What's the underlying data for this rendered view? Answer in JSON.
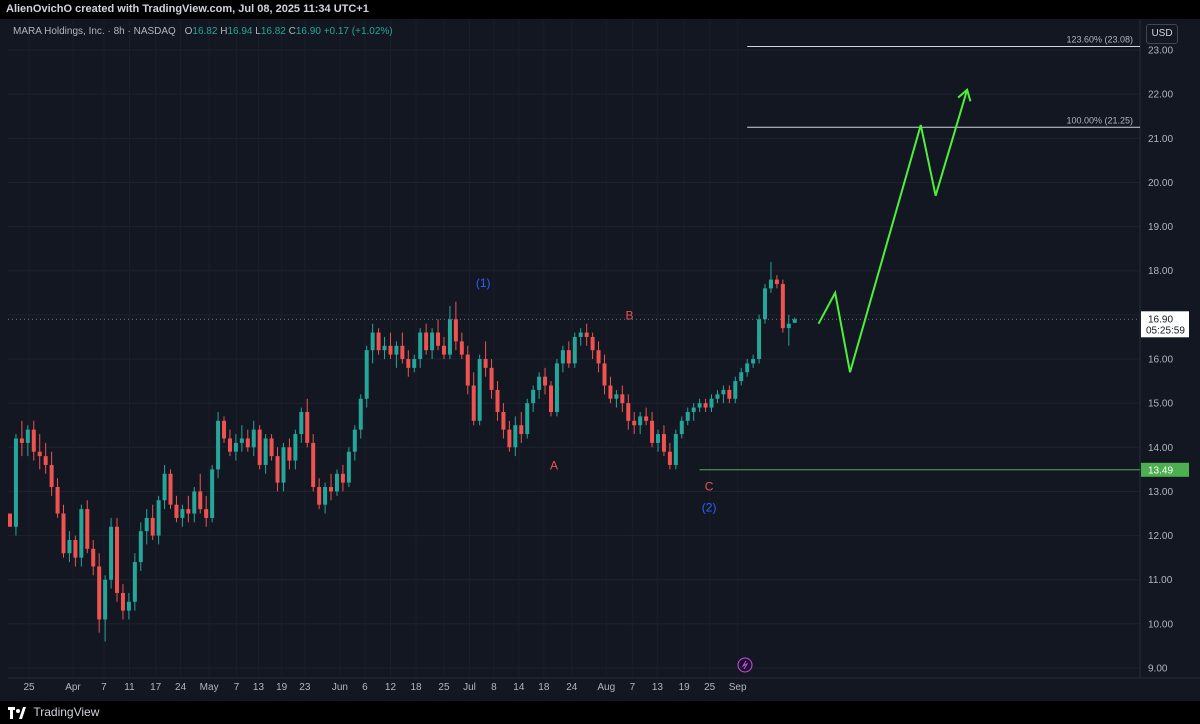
{
  "header": {
    "attribution": "AlienOvichO created with TradingView.com, Jul 08, 2025 11:34 UTC+1"
  },
  "legend": {
    "symbol": "MARA Holdings, Inc. · 8h · NASDAQ",
    "open_label": "O",
    "open": "16.82",
    "high_label": "H",
    "high": "16.94",
    "low_label": "L",
    "low": "16.82",
    "close_label": "C",
    "close": "16.90",
    "change": "+0.17 (+1.02%)"
  },
  "currency": "USD",
  "footer": {
    "brand": "TradingView"
  },
  "colors": {
    "up": "#26a69a",
    "down": "#ef5350",
    "projection": "#4cf03a",
    "wave_blue": "#2962ff",
    "wave_red": "#ef5350",
    "support": "#4caf50"
  },
  "chart_data": {
    "type": "candlestick",
    "yaxis": {
      "min": 9.0,
      "max": 23.0,
      "ticks": [
        9,
        10,
        11,
        12,
        13,
        14,
        15,
        16,
        17,
        18,
        19,
        20,
        21,
        22,
        23
      ],
      "tick_labels": [
        "9.00",
        "10.00",
        "11.00",
        "12.00",
        "13.00",
        "14.00",
        "15.00",
        "16.00",
        "17.00",
        "18.00",
        "19.00",
        "20.00",
        "21.00",
        "22.00",
        "23.00"
      ]
    },
    "xaxis": {
      "labels": [
        "25",
        "Apr",
        "7",
        "11",
        "17",
        "24",
        "May",
        "7",
        "13",
        "19",
        "23",
        "Jun",
        "6",
        "12",
        "18",
        "25",
        "Jul",
        "8",
        "14",
        "18",
        "24",
        "Aug",
        "7",
        "13",
        "19",
        "25",
        "Sep"
      ],
      "label_positions": [
        0,
        7.4,
        12.6,
        16.9,
        21.3,
        25.5,
        30.3,
        34.9,
        38.6,
        42.5,
        46.4,
        52.3,
        56.5,
        60.8,
        65.1,
        69.8,
        74.1,
        78.2,
        82.4,
        86.6,
        91.3,
        97.1,
        101.5,
        105.7,
        110.2,
        114.5,
        119.2
      ]
    },
    "candles": [
      [
        12.5,
        12.5,
        12.2,
        12.2
      ],
      [
        12.2,
        14.3,
        12.0,
        14.2
      ],
      [
        14.2,
        14.6,
        13.8,
        14.1
      ],
      [
        14.1,
        14.5,
        13.8,
        14.4
      ],
      [
        14.4,
        14.6,
        13.7,
        13.9
      ],
      [
        13.9,
        14.3,
        13.5,
        13.8
      ],
      [
        13.8,
        14.1,
        13.4,
        13.6
      ],
      [
        13.6,
        13.9,
        12.9,
        13.1
      ],
      [
        13.1,
        13.3,
        12.4,
        12.5
      ],
      [
        12.5,
        12.7,
        11.5,
        11.6
      ],
      [
        11.6,
        12.1,
        11.4,
        11.9
      ],
      [
        11.9,
        12.0,
        11.3,
        11.5
      ],
      [
        11.5,
        12.7,
        11.3,
        12.6
      ],
      [
        12.6,
        12.8,
        11.6,
        11.7
      ],
      [
        11.7,
        11.9,
        11.1,
        11.3
      ],
      [
        11.3,
        11.6,
        9.8,
        10.1
      ],
      [
        10.1,
        11.1,
        9.6,
        11.0
      ],
      [
        11.0,
        12.4,
        10.8,
        12.2
      ],
      [
        12.2,
        12.4,
        10.5,
        10.7
      ],
      [
        10.7,
        10.9,
        10.1,
        10.3
      ],
      [
        10.3,
        10.7,
        10.1,
        10.5
      ],
      [
        10.5,
        11.6,
        10.3,
        11.4
      ],
      [
        11.4,
        12.3,
        11.2,
        12.1
      ],
      [
        12.1,
        12.6,
        11.8,
        12.4
      ],
      [
        12.4,
        12.7,
        11.9,
        12.0
      ],
      [
        12.0,
        12.9,
        11.8,
        12.8
      ],
      [
        12.8,
        13.6,
        12.6,
        13.4
      ],
      [
        13.4,
        13.5,
        12.6,
        12.7
      ],
      [
        12.7,
        12.9,
        12.3,
        12.4
      ],
      [
        12.4,
        12.7,
        12.2,
        12.6
      ],
      [
        12.6,
        12.9,
        12.3,
        12.5
      ],
      [
        12.5,
        13.1,
        12.3,
        13.0
      ],
      [
        13.0,
        13.4,
        12.5,
        12.6
      ],
      [
        12.6,
        12.9,
        12.2,
        12.4
      ],
      [
        12.4,
        13.6,
        12.3,
        13.5
      ],
      [
        13.5,
        14.8,
        13.3,
        14.6
      ],
      [
        14.6,
        14.7,
        14.1,
        14.2
      ],
      [
        14.2,
        14.4,
        13.8,
        13.9
      ],
      [
        13.9,
        14.3,
        13.7,
        14.1
      ],
      [
        14.1,
        14.5,
        13.9,
        14.2
      ],
      [
        14.2,
        14.4,
        13.9,
        14.0
      ],
      [
        14.0,
        14.6,
        13.8,
        14.4
      ],
      [
        14.4,
        14.5,
        13.5,
        13.6
      ],
      [
        13.6,
        14.3,
        13.4,
        14.2
      ],
      [
        14.2,
        14.3,
        13.7,
        13.8
      ],
      [
        13.8,
        14.0,
        13.0,
        13.2
      ],
      [
        13.2,
        14.1,
        13.0,
        14.0
      ],
      [
        14.0,
        14.2,
        13.5,
        13.7
      ],
      [
        13.7,
        14.4,
        13.5,
        14.3
      ],
      [
        14.3,
        14.9,
        14.1,
        14.8
      ],
      [
        14.8,
        15.1,
        14.0,
        14.1
      ],
      [
        14.1,
        14.3,
        13.0,
        13.1
      ],
      [
        13.1,
        13.3,
        12.6,
        12.7
      ],
      [
        12.7,
        13.2,
        12.5,
        13.1
      ],
      [
        13.1,
        13.4,
        12.8,
        13.0
      ],
      [
        13.0,
        13.5,
        12.9,
        13.4
      ],
      [
        13.4,
        13.6,
        13.0,
        13.2
      ],
      [
        13.2,
        14.0,
        13.1,
        13.9
      ],
      [
        13.9,
        14.5,
        13.7,
        14.4
      ],
      [
        14.4,
        15.2,
        14.2,
        15.1
      ],
      [
        15.1,
        16.3,
        14.9,
        16.2
      ],
      [
        16.2,
        16.8,
        15.9,
        16.6
      ],
      [
        16.6,
        16.7,
        16.1,
        16.2
      ],
      [
        16.2,
        16.5,
        16.0,
        16.3
      ],
      [
        16.3,
        16.6,
        16.0,
        16.1
      ],
      [
        16.1,
        16.4,
        15.8,
        16.3
      ],
      [
        16.3,
        16.6,
        15.9,
        16.0
      ],
      [
        16.0,
        16.2,
        15.6,
        15.8
      ],
      [
        15.8,
        16.1,
        15.7,
        16.0
      ],
      [
        16.0,
        16.7,
        15.8,
        16.6
      ],
      [
        16.6,
        16.8,
        16.1,
        16.2
      ],
      [
        16.2,
        16.7,
        16.0,
        16.6
      ],
      [
        16.6,
        16.9,
        16.2,
        16.3
      ],
      [
        16.3,
        16.5,
        16.0,
        16.1
      ],
      [
        16.1,
        17.2,
        16.0,
        16.9
      ],
      [
        16.9,
        17.3,
        16.2,
        16.4
      ],
      [
        16.4,
        16.6,
        16.0,
        16.1
      ],
      [
        16.1,
        16.3,
        15.2,
        15.4
      ],
      [
        15.4,
        15.7,
        14.5,
        14.6
      ],
      [
        14.6,
        16.1,
        14.5,
        16.0
      ],
      [
        16.0,
        16.4,
        15.6,
        15.8
      ],
      [
        15.8,
        16.0,
        15.1,
        15.3
      ],
      [
        15.3,
        15.5,
        14.6,
        14.8
      ],
      [
        14.8,
        15.0,
        14.2,
        14.4
      ],
      [
        14.4,
        14.6,
        13.9,
        14.0
      ],
      [
        14.0,
        14.7,
        13.8,
        14.5
      ],
      [
        14.5,
        14.8,
        14.1,
        14.3
      ],
      [
        14.3,
        15.1,
        14.2,
        15.0
      ],
      [
        15.0,
        15.4,
        14.8,
        15.3
      ],
      [
        15.3,
        15.7,
        15.1,
        15.6
      ],
      [
        15.6,
        15.8,
        15.2,
        15.4
      ],
      [
        15.4,
        15.5,
        14.7,
        14.8
      ],
      [
        14.8,
        16.0,
        14.7,
        15.9
      ],
      [
        15.9,
        16.3,
        15.7,
        16.2
      ],
      [
        16.2,
        16.4,
        15.8,
        15.9
      ],
      [
        15.9,
        16.6,
        15.8,
        16.5
      ],
      [
        16.5,
        16.7,
        16.3,
        16.6
      ],
      [
        16.6,
        16.8,
        16.3,
        16.5
      ],
      [
        16.5,
        16.6,
        16.0,
        16.2
      ],
      [
        16.2,
        16.4,
        15.7,
        15.9
      ],
      [
        15.9,
        16.1,
        15.2,
        15.4
      ],
      [
        15.4,
        15.6,
        15.0,
        15.1
      ],
      [
        15.1,
        15.3,
        14.9,
        15.2
      ],
      [
        15.2,
        15.4,
        14.8,
        15.0
      ],
      [
        15.0,
        15.2,
        14.4,
        14.6
      ],
      [
        14.6,
        14.8,
        14.3,
        14.5
      ],
      [
        14.5,
        14.8,
        14.3,
        14.7
      ],
      [
        14.7,
        14.9,
        14.5,
        14.6
      ],
      [
        14.6,
        14.8,
        14.0,
        14.1
      ],
      [
        14.1,
        14.4,
        13.9,
        14.3
      ],
      [
        14.3,
        14.5,
        13.8,
        13.9
      ],
      [
        13.9,
        14.1,
        13.5,
        13.6
      ],
      [
        13.6,
        14.4,
        13.5,
        14.3
      ],
      [
        14.3,
        14.7,
        14.2,
        14.6
      ],
      [
        14.6,
        14.9,
        14.5,
        14.8
      ],
      [
        14.8,
        15.0,
        14.6,
        14.9
      ],
      [
        14.9,
        15.1,
        14.8,
        15.0
      ],
      [
        15.0,
        15.1,
        14.8,
        14.9
      ],
      [
        14.9,
        15.2,
        14.8,
        15.1
      ],
      [
        15.1,
        15.3,
        15.0,
        15.2
      ],
      [
        15.2,
        15.4,
        15.0,
        15.3
      ],
      [
        15.3,
        15.4,
        15.0,
        15.1
      ],
      [
        15.1,
        15.6,
        15.0,
        15.5
      ],
      [
        15.5,
        15.8,
        15.4,
        15.7
      ],
      [
        15.7,
        16.0,
        15.6,
        15.9
      ],
      [
        15.9,
        16.1,
        15.8,
        16.0
      ],
      [
        16.0,
        17.0,
        15.9,
        16.9
      ],
      [
        16.9,
        17.7,
        16.8,
        17.6
      ],
      [
        17.6,
        18.2,
        17.5,
        17.8
      ],
      [
        17.8,
        17.9,
        17.6,
        17.7
      ],
      [
        17.7,
        17.8,
        16.6,
        16.7
      ],
      [
        16.7,
        17.0,
        16.3,
        16.8
      ],
      [
        16.82,
        16.94,
        16.82,
        16.9
      ]
    ],
    "projection_path": [
      [
        136.0,
        16.8
      ],
      [
        138.8,
        17.5
      ],
      [
        141.3,
        15.7
      ],
      [
        153.2,
        21.3
      ],
      [
        155.7,
        19.7
      ],
      [
        161.0,
        22.1
      ]
    ],
    "fib_levels": [
      {
        "label": "123.60% (23.08)",
        "value": 23.08,
        "from": 124
      },
      {
        "label": "100.00% (21.25)",
        "value": 21.25,
        "from": 124
      }
    ],
    "last_price": {
      "value": 16.9,
      "label": "16.90",
      "countdown": "05:25:59"
    },
    "support": {
      "value": 13.49,
      "label": "13.49",
      "from": 116
    },
    "wave_labels": [
      {
        "text": "(1)",
        "x": 79.6,
        "y": 17.63,
        "color": "blue"
      },
      {
        "text": "A",
        "x": 91.5,
        "y": 13.5,
        "color": "red"
      },
      {
        "text": "B",
        "x": 104.2,
        "y": 16.9,
        "color": "red"
      },
      {
        "text": "C",
        "x": 117.6,
        "y": 13.02,
        "color": "red"
      },
      {
        "text": "(2)",
        "x": 117.6,
        "y": 12.55,
        "color": "blue"
      }
    ]
  }
}
